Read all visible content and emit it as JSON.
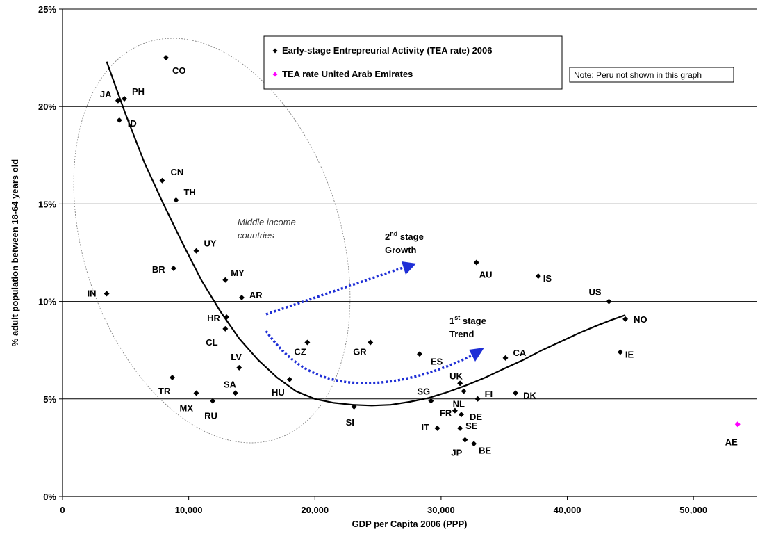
{
  "chart_data": {
    "type": "scatter",
    "xlabel": "GDP per Capita 2006 (PPP)",
    "ylabel": "% adult population between 18-64 years old",
    "xlim": [
      0,
      55000
    ],
    "ylim": [
      0,
      25
    ],
    "x_ticks": [
      {
        "value": 0,
        "label": "0"
      },
      {
        "value": 10000,
        "label": "10,000"
      },
      {
        "value": 20000,
        "label": "20,000"
      },
      {
        "value": 30000,
        "label": "30,000"
      },
      {
        "value": 40000,
        "label": "40,000"
      },
      {
        "value": 50000,
        "label": "50,000"
      }
    ],
    "y_ticks": [
      {
        "value": 0,
        "label": "0%"
      },
      {
        "value": 5,
        "label": "5%"
      },
      {
        "value": 10,
        "label": "10%"
      },
      {
        "value": 15,
        "label": "15%"
      },
      {
        "value": 20,
        "label": "20%"
      },
      {
        "value": 25,
        "label": "25%"
      }
    ],
    "grid": "horizontal",
    "legend_position": "top-right",
    "series": [
      {
        "name": "Early-stage Entrepreurial Activity (TEA rate) 2006",
        "color": "#000000",
        "marker": "diamond",
        "points": [
          {
            "label": "IN",
            "x": 3500,
            "y": 10.4
          },
          {
            "label": "JA",
            "x": 4400,
            "y": 20.3
          },
          {
            "label": "PH",
            "x": 4900,
            "y": 20.4
          },
          {
            "label": "ID",
            "x": 4500,
            "y": 19.3
          },
          {
            "label": "CO",
            "x": 8200,
            "y": 22.5
          },
          {
            "label": "CN",
            "x": 7900,
            "y": 16.2
          },
          {
            "label": "TH",
            "x": 9000,
            "y": 15.2
          },
          {
            "label": "BR",
            "x": 8800,
            "y": 11.7
          },
          {
            "label": "UY",
            "x": 10600,
            "y": 12.6
          },
          {
            "label": "TR",
            "x": 8700,
            "y": 6.1
          },
          {
            "label": "MX",
            "x": 10600,
            "y": 5.3
          },
          {
            "label": "RU",
            "x": 11900,
            "y": 4.9
          },
          {
            "label": "MY",
            "x": 12900,
            "y": 11.1
          },
          {
            "label": "HR",
            "x": 13000,
            "y": 9.2
          },
          {
            "label": "CL",
            "x": 12900,
            "y": 8.6
          },
          {
            "label": "AR",
            "x": 14200,
            "y": 10.2
          },
          {
            "label": "LV",
            "x": 14000,
            "y": 6.6
          },
          {
            "label": "SA",
            "x": 13700,
            "y": 5.3
          },
          {
            "label": "HU",
            "x": 18000,
            "y": 6.0
          },
          {
            "label": "CZ",
            "x": 19400,
            "y": 7.9
          },
          {
            "label": "SI",
            "x": 23100,
            "y": 4.6
          },
          {
            "label": "GR",
            "x": 24400,
            "y": 7.9
          },
          {
            "label": "ES",
            "x": 28300,
            "y": 7.3
          },
          {
            "label": "SG",
            "x": 29200,
            "y": 4.9
          },
          {
            "label": "IT",
            "x": 29700,
            "y": 3.5
          },
          {
            "label": "UK",
            "x": 31500,
            "y": 5.8
          },
          {
            "label": "NL",
            "x": 31800,
            "y": 5.4
          },
          {
            "label": "FR",
            "x": 31100,
            "y": 4.4
          },
          {
            "label": "DE",
            "x": 31600,
            "y": 4.2
          },
          {
            "label": "SE",
            "x": 31500,
            "y": 3.5
          },
          {
            "label": "JP",
            "x": 31900,
            "y": 2.9
          },
          {
            "label": "BE",
            "x": 32600,
            "y": 2.7
          },
          {
            "label": "FI",
            "x": 32900,
            "y": 5.0
          },
          {
            "label": "AU",
            "x": 32800,
            "y": 12.0
          },
          {
            "label": "CA",
            "x": 35100,
            "y": 7.1
          },
          {
            "label": "DK",
            "x": 35900,
            "y": 5.3
          },
          {
            "label": "IS",
            "x": 37700,
            "y": 11.3
          },
          {
            "label": "US",
            "x": 43300,
            "y": 10.0
          },
          {
            "label": "NO",
            "x": 44600,
            "y": 9.1
          },
          {
            "label": "IE",
            "x": 44200,
            "y": 7.4
          }
        ]
      },
      {
        "name": "TEA rate United Arab Emirates",
        "color": "#ff00ff",
        "marker": "diamond",
        "points": [
          {
            "label": "AE",
            "x": 53500,
            "y": 3.7
          }
        ]
      }
    ],
    "trend_curve": [
      [
        3500,
        22.3
      ],
      [
        5000,
        19.6
      ],
      [
        6500,
        17.1
      ],
      [
        8000,
        15.0
      ],
      [
        9500,
        13.0
      ],
      [
        11000,
        11.1
      ],
      [
        12500,
        9.5
      ],
      [
        14000,
        8.1
      ],
      [
        15500,
        7.0
      ],
      [
        17000,
        6.1
      ],
      [
        18500,
        5.4
      ],
      [
        20000,
        5.0
      ],
      [
        21500,
        4.8
      ],
      [
        23000,
        4.7
      ],
      [
        24500,
        4.66
      ],
      [
        26000,
        4.7
      ],
      [
        27500,
        4.85
      ],
      [
        29000,
        5.05
      ],
      [
        30500,
        5.35
      ],
      [
        32000,
        5.7
      ],
      [
        33500,
        6.1
      ],
      [
        35000,
        6.55
      ],
      [
        36500,
        7.0
      ],
      [
        38000,
        7.5
      ],
      [
        39500,
        7.95
      ],
      [
        41000,
        8.4
      ],
      [
        42500,
        8.8
      ],
      [
        43500,
        9.05
      ],
      [
        44600,
        9.3
      ]
    ],
    "annotations": {
      "middle_income": [
        "Middle income",
        "countries"
      ],
      "stage2": {
        "num": "2",
        "sup": "nd",
        "line1": " stage",
        "line2": "Growth"
      },
      "stage1": {
        "num": "1",
        "sup": "st",
        "line1": " stage",
        "line2": "Trend"
      },
      "note": "Note: Peru not shown in this graph"
    }
  }
}
